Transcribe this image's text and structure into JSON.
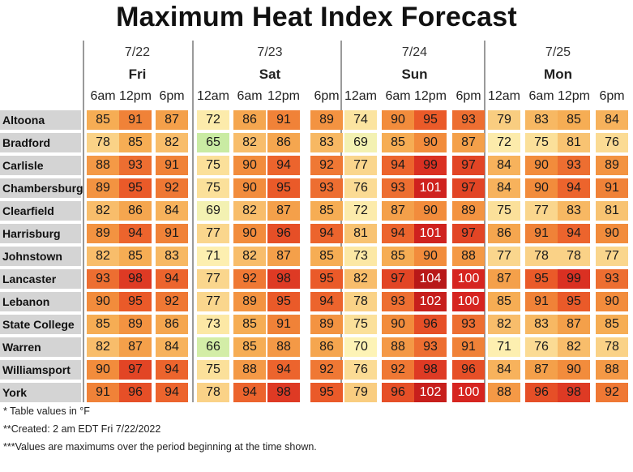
{
  "title": "Maximum Heat Index Forecast",
  "groups": [
    {
      "date": "7/22",
      "day": "Fri",
      "times": [
        "6am",
        "12pm",
        "6pm"
      ]
    },
    {
      "date": "7/23",
      "day": "Sat",
      "times": [
        "12am",
        "6am",
        "12pm",
        "6pm"
      ]
    },
    {
      "date": "7/24",
      "day": "Sun",
      "times": [
        "12am",
        "6am",
        "12pm",
        "6pm"
      ]
    },
    {
      "date": "7/25",
      "day": "Mon",
      "times": [
        "12am",
        "6am",
        "12pm",
        "6pm"
      ]
    }
  ],
  "color_scale": {
    "stops": [
      {
        "value": 65,
        "color": "#c9eba3"
      },
      {
        "value": 70,
        "color": "#fdf3b6"
      },
      {
        "value": 75,
        "color": "#fbe09a"
      },
      {
        "value": 80,
        "color": "#f9c87a"
      },
      {
        "value": 85,
        "color": "#f6ad54"
      },
      {
        "value": 90,
        "color": "#f28c3c"
      },
      {
        "value": 95,
        "color": "#ea5a29"
      },
      {
        "value": 100,
        "color": "#d62520"
      },
      {
        "value": 104,
        "color": "#b81818"
      }
    ]
  },
  "chart_data": {
    "type": "table",
    "title": "Maximum Heat Index Forecast",
    "columns": [
      "Fri 7/22 6am",
      "Fri 7/22 12pm",
      "Fri 7/22 6pm",
      "Sat 7/23 12am",
      "Sat 7/23 6am",
      "Sat 7/23 12pm",
      "Sat 7/23 6pm",
      "Sun 7/24 12am",
      "Sun 7/24 6am",
      "Sun 7/24 12pm",
      "Sun 7/24 6pm",
      "Mon 7/25 12am",
      "Mon 7/25 6am",
      "Mon 7/25 12pm",
      "Mon 7/25 6pm"
    ],
    "rows": [
      {
        "name": "Altoona",
        "values": [
          85,
          91,
          87,
          72,
          86,
          91,
          89,
          74,
          90,
          95,
          93,
          79,
          83,
          85,
          84
        ]
      },
      {
        "name": "Bradford",
        "values": [
          78,
          85,
          82,
          65,
          82,
          86,
          83,
          69,
          85,
          90,
          87,
          72,
          75,
          81,
          76
        ]
      },
      {
        "name": "Carlisle",
        "values": [
          88,
          93,
          91,
          75,
          90,
          94,
          92,
          77,
          94,
          99,
          97,
          84,
          90,
          93,
          89
        ]
      },
      {
        "name": "Chambersburg",
        "values": [
          89,
          95,
          92,
          75,
          90,
          95,
          93,
          76,
          93,
          101,
          97,
          84,
          90,
          94,
          91
        ]
      },
      {
        "name": "Clearfield",
        "values": [
          82,
          86,
          84,
          69,
          82,
          87,
          85,
          72,
          87,
          90,
          89,
          75,
          77,
          83,
          81
        ]
      },
      {
        "name": "Harrisburg",
        "values": [
          89,
          94,
          91,
          77,
          90,
          96,
          94,
          81,
          94,
          101,
          97,
          86,
          91,
          94,
          90
        ]
      },
      {
        "name": "Johnstown",
        "values": [
          82,
          85,
          83,
          71,
          82,
          87,
          85,
          73,
          85,
          90,
          88,
          77,
          78,
          78,
          77
        ]
      },
      {
        "name": "Lancaster",
        "values": [
          93,
          98,
          94,
          77,
          92,
          98,
          95,
          82,
          97,
          104,
          100,
          87,
          95,
          99,
          93
        ]
      },
      {
        "name": "Lebanon",
        "values": [
          90,
          95,
          92,
          77,
          89,
          95,
          94,
          78,
          93,
          102,
          100,
          85,
          91,
          95,
          90
        ]
      },
      {
        "name": "State College",
        "values": [
          85,
          89,
          86,
          73,
          85,
          91,
          89,
          75,
          90,
          96,
          93,
          82,
          83,
          87,
          85
        ]
      },
      {
        "name": "Warren",
        "values": [
          82,
          87,
          84,
          66,
          85,
          88,
          86,
          70,
          88,
          93,
          91,
          71,
          76,
          82,
          78
        ]
      },
      {
        "name": "Williamsport",
        "values": [
          90,
          97,
          94,
          75,
          88,
          94,
          92,
          76,
          92,
          98,
          96,
          84,
          87,
          90,
          88
        ]
      },
      {
        "name": "York",
        "values": [
          91,
          96,
          94,
          78,
          94,
          98,
          95,
          79,
          96,
          102,
          100,
          88,
          96,
          98,
          92
        ]
      }
    ]
  },
  "notes": [
    "* Table values in °F",
    "**Created: 2 am EDT Fri 7/22/2022",
    "***Values are maximums over the period beginning at the time shown."
  ]
}
